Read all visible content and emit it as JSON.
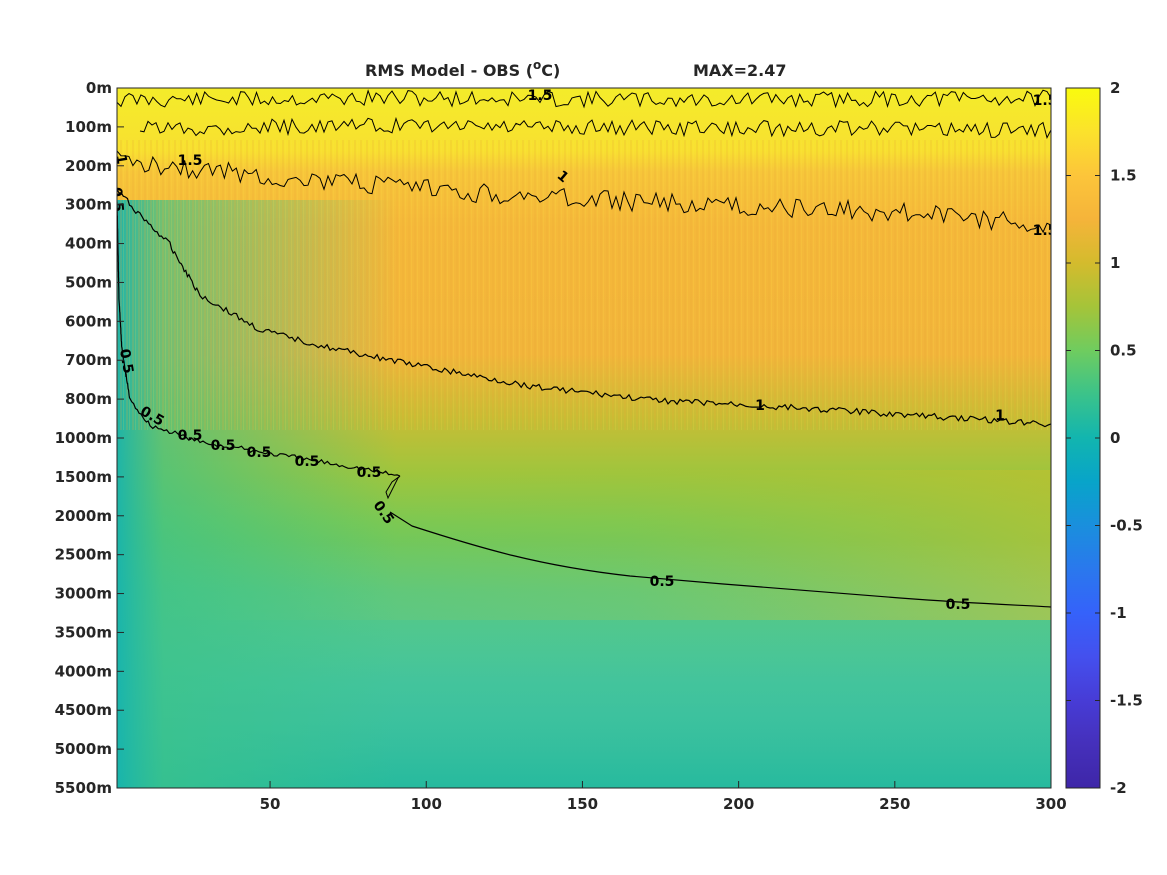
{
  "chart_data": {
    "type": "heatmap",
    "title": "RMS Model - OBS (°C)",
    "title_main": "RMS Model - OBS (",
    "title_sup": "o",
    "title_end": "C)",
    "max_label": "MAX=2.47",
    "xlabel": "",
    "ylabel": "",
    "xlim": [
      1,
      300
    ],
    "x_ticks": [
      "50",
      "100",
      "150",
      "200",
      "250",
      "300"
    ],
    "x_tick_values": [
      50,
      100,
      150,
      200,
      250,
      300
    ],
    "y_ticks": [
      "0m",
      "100m",
      "200m",
      "300m",
      "400m",
      "500m",
      "600m",
      "700m",
      "800m",
      "1000m",
      "1500m",
      "2000m",
      "2500m",
      "3000m",
      "3500m",
      "4000m",
      "4500m",
      "5000m",
      "5500m"
    ],
    "y_reversed": true,
    "colormap": "parula",
    "clim": [
      -2,
      2
    ],
    "colorbar_ticks": [
      "2",
      "1.5",
      "1",
      "0.5",
      "0",
      "-0.5",
      "-1",
      "-1.5",
      "-2"
    ],
    "colorbar_values": [
      2,
      1.5,
      1,
      0.5,
      0,
      -0.5,
      -1,
      -1.5,
      -2
    ],
    "contour_levels": [
      0.5,
      1,
      1.5
    ],
    "contour_0_5_labels": [
      "0.5",
      "0.5",
      "0.5",
      "0.5",
      "0.5",
      "0.5",
      "0.5",
      "0.5",
      "0.5",
      "0.5",
      "0.5"
    ],
    "contour_1_labels": [
      "1",
      "1",
      "1",
      "1"
    ],
    "contour_1_5_labels": [
      "1.5",
      "1.5",
      "1.5",
      "1.5"
    ],
    "colors": {
      "top": "#f4ec2a",
      "upper": "#f8c63a",
      "middle": "#f5b43a",
      "lower": "#a5c439",
      "mid_green": "#5ec962",
      "deep": "#2cbf98",
      "bottom_left": "#1bb5ae"
    }
  }
}
